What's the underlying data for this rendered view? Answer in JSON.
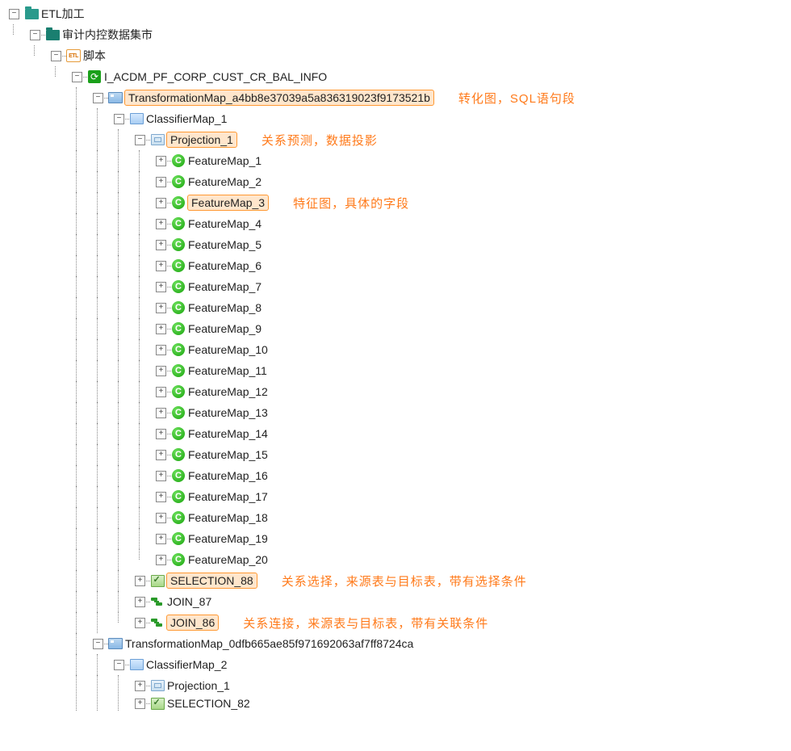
{
  "tree": {
    "root": {
      "label": "ETL加工",
      "icon": "folder"
    },
    "l1": {
      "label": "审计内控数据集市",
      "icon": "folder-dark"
    },
    "l2": {
      "label": "脚本",
      "icon": "etl"
    },
    "l3": {
      "label": "I_ACDM_PF_CORP_CUST_CR_BAL_INFO",
      "icon": "refresh"
    },
    "tmap1": {
      "label": "TransformationMap_a4bb8e37039a5a836319023f9173521b",
      "icon": "map",
      "hl": true
    },
    "cmap1": {
      "label": "ClassifierMap_1",
      "icon": "class"
    },
    "proj1": {
      "label": "Projection_1",
      "icon": "proj",
      "hl": true
    },
    "features": [
      "FeatureMap_1",
      "FeatureMap_2",
      "FeatureMap_3",
      "FeatureMap_4",
      "FeatureMap_5",
      "FeatureMap_6",
      "FeatureMap_7",
      "FeatureMap_8",
      "FeatureMap_9",
      "FeatureMap_10",
      "FeatureMap_11",
      "FeatureMap_12",
      "FeatureMap_13",
      "FeatureMap_14",
      "FeatureMap_15",
      "FeatureMap_16",
      "FeatureMap_17",
      "FeatureMap_18",
      "FeatureMap_19",
      "FeatureMap_20"
    ],
    "feature_hl_index": 2,
    "sel88": {
      "label": "SELECTION_88",
      "icon": "sel",
      "hl": true
    },
    "join87": {
      "label": "JOIN_87",
      "icon": "join"
    },
    "join86": {
      "label": "JOIN_86",
      "icon": "join",
      "hl": true
    },
    "tmap2": {
      "label": "TransformationMap_0dfb665ae85f971692063af7ff8724ca",
      "icon": "map"
    },
    "cmap2": {
      "label": "ClassifierMap_2",
      "icon": "class"
    },
    "proj2": {
      "label": "Projection_1",
      "icon": "proj"
    },
    "sel82": {
      "label": "SELECTION_82",
      "icon": "sel"
    }
  },
  "annotations": {
    "tmap": "转化图，SQL语句段",
    "proj": "关系预测，数据投影",
    "feature": "特征图，具体的字段",
    "selection": "关系选择，来源表与目标表，带有选择条件",
    "join": "关系连接，来源表与目标表，带有关联条件"
  },
  "toggle": {
    "plus": "+",
    "minus": "−"
  },
  "colors": {
    "annotation": "#ff7a1a",
    "highlight_bg": "#ffe6cc",
    "highlight_border": "#ff9933",
    "connector": "#888888",
    "folder": "#2a9a8c",
    "refresh": "#1aa01a",
    "green_circle": "#1ba50f"
  }
}
